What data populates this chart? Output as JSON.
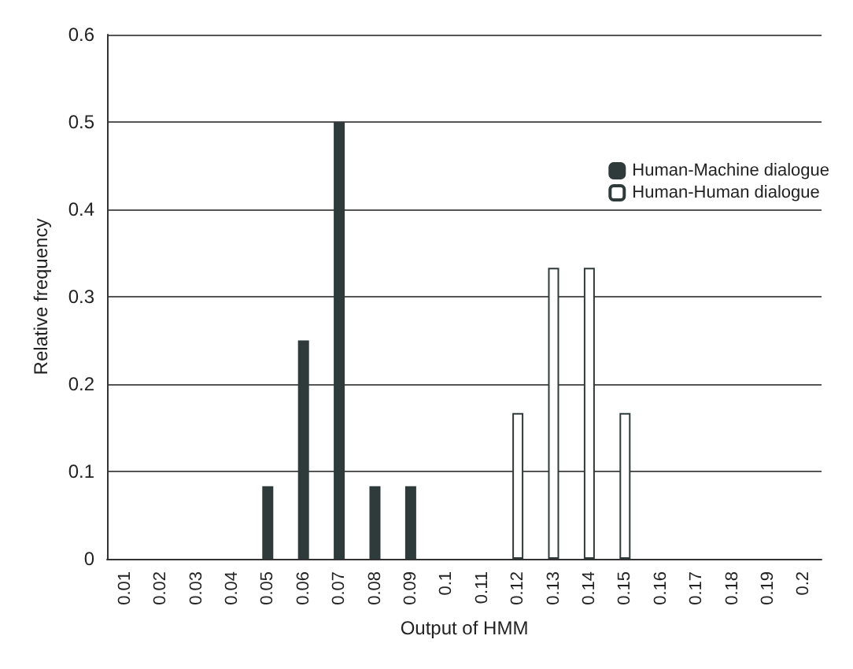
{
  "chart_data": {
    "type": "bar",
    "xlabel": "Output of HMM",
    "ylabel": "Relative frequency",
    "categories": [
      "0.01",
      "0.02",
      "0.03",
      "0.04",
      "0.05",
      "0.06",
      "0.07",
      "0.08",
      "0.09",
      "0.1",
      "0.11",
      "0.12",
      "0.13",
      "0.14",
      "0.15",
      "0.16",
      "0.17",
      "0.18",
      "0.19",
      "0.2"
    ],
    "series": [
      {
        "name": "Human-Machine dialogue",
        "color": "#2f3b3b",
        "values": [
          0,
          0,
          0,
          0,
          0.083,
          0.25,
          0.5,
          0.083,
          0.083,
          0,
          0,
          0,
          0,
          0,
          0,
          0,
          0,
          0,
          0,
          0
        ]
      },
      {
        "name": "Human-Human dialogue",
        "color": "#ffffff",
        "values": [
          0,
          0,
          0,
          0,
          0,
          0,
          0,
          0,
          0,
          0,
          0,
          0.167,
          0.333,
          0.333,
          0.167,
          0,
          0,
          0,
          0,
          0
        ]
      }
    ],
    "ylim": [
      0,
      0.6
    ],
    "yticks": [
      0,
      0.1,
      0.2,
      0.3,
      0.4,
      0.5,
      0.6
    ],
    "grid": "y",
    "legend": "right"
  }
}
